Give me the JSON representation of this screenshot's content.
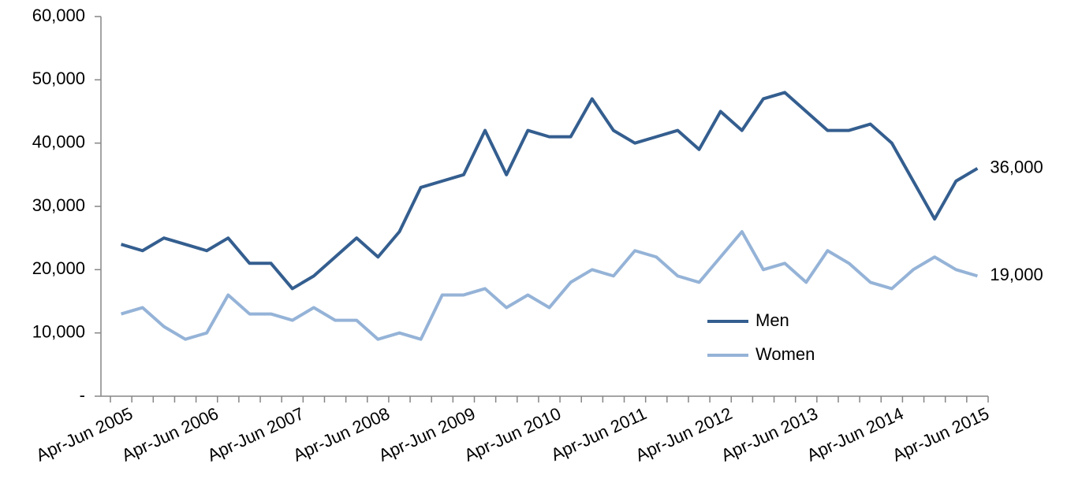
{
  "chart_data": {
    "type": "line",
    "categories": [
      "Apr-Jun 2005",
      null,
      null,
      null,
      "Apr-Jun 2006",
      null,
      null,
      null,
      "Apr-Jun 2007",
      null,
      null,
      null,
      "Apr-Jun 2008",
      null,
      null,
      null,
      "Apr-Jun 2009",
      null,
      null,
      null,
      "Apr-Jun 2010",
      null,
      null,
      null,
      "Apr-Jun 2011",
      null,
      null,
      null,
      "Apr-Jun 2012",
      null,
      null,
      null,
      "Apr-Jun 2013",
      null,
      null,
      null,
      "Apr-Jun 2014",
      null,
      null,
      null,
      "Apr-Jun 2015"
    ],
    "series": [
      {
        "name": "Men",
        "color": "#345e8f",
        "values": [
          24000,
          23000,
          25000,
          24000,
          23000,
          25000,
          21000,
          21000,
          17000,
          19000,
          22000,
          25000,
          22000,
          26000,
          33000,
          34000,
          35000,
          42000,
          35000,
          42000,
          41000,
          41000,
          47000,
          42000,
          40000,
          41000,
          42000,
          39000,
          45000,
          42000,
          47000,
          48000,
          45000,
          42000,
          42000,
          43000,
          40000,
          34000,
          28000,
          34000,
          36000
        ],
        "value_labels": [
          null,
          null,
          null,
          null,
          null,
          null,
          null,
          null,
          null,
          null,
          null,
          null,
          null,
          null,
          null,
          null,
          null,
          null,
          null,
          null,
          null,
          null,
          null,
          null,
          null,
          null,
          null,
          null,
          null,
          null,
          null,
          null,
          null,
          null,
          null,
          null,
          null,
          null,
          null,
          null,
          "36,000"
        ]
      },
      {
        "name": "Women",
        "color": "#95b3d7",
        "values": [
          13000,
          14000,
          11000,
          9000,
          10000,
          16000,
          13000,
          13000,
          12000,
          14000,
          12000,
          12000,
          9000,
          10000,
          9000,
          16000,
          16000,
          17000,
          14000,
          16000,
          14000,
          18000,
          20000,
          19000,
          23000,
          22000,
          19000,
          18000,
          22000,
          26000,
          20000,
          21000,
          18000,
          23000,
          21000,
          18000,
          17000,
          20000,
          22000,
          20000,
          19000
        ],
        "value_labels": [
          null,
          null,
          null,
          null,
          null,
          null,
          null,
          null,
          null,
          null,
          null,
          null,
          null,
          null,
          null,
          null,
          null,
          null,
          null,
          null,
          null,
          null,
          null,
          null,
          null,
          null,
          null,
          null,
          null,
          null,
          null,
          null,
          null,
          null,
          null,
          null,
          null,
          null,
          null,
          null,
          "19,000"
        ]
      }
    ],
    "ylim": [
      0,
      60000
    ],
    "yticks": [
      {
        "value": 0,
        "label": "-"
      },
      {
        "value": 10000,
        "label": "10,000"
      },
      {
        "value": 20000,
        "label": "20,000"
      },
      {
        "value": 30000,
        "label": "30,000"
      },
      {
        "value": 40000,
        "label": "40,000"
      },
      {
        "value": 50000,
        "label": "50,000"
      },
      {
        "value": 60000,
        "label": "60,000"
      }
    ],
    "grid": false,
    "legend": "center-right"
  }
}
